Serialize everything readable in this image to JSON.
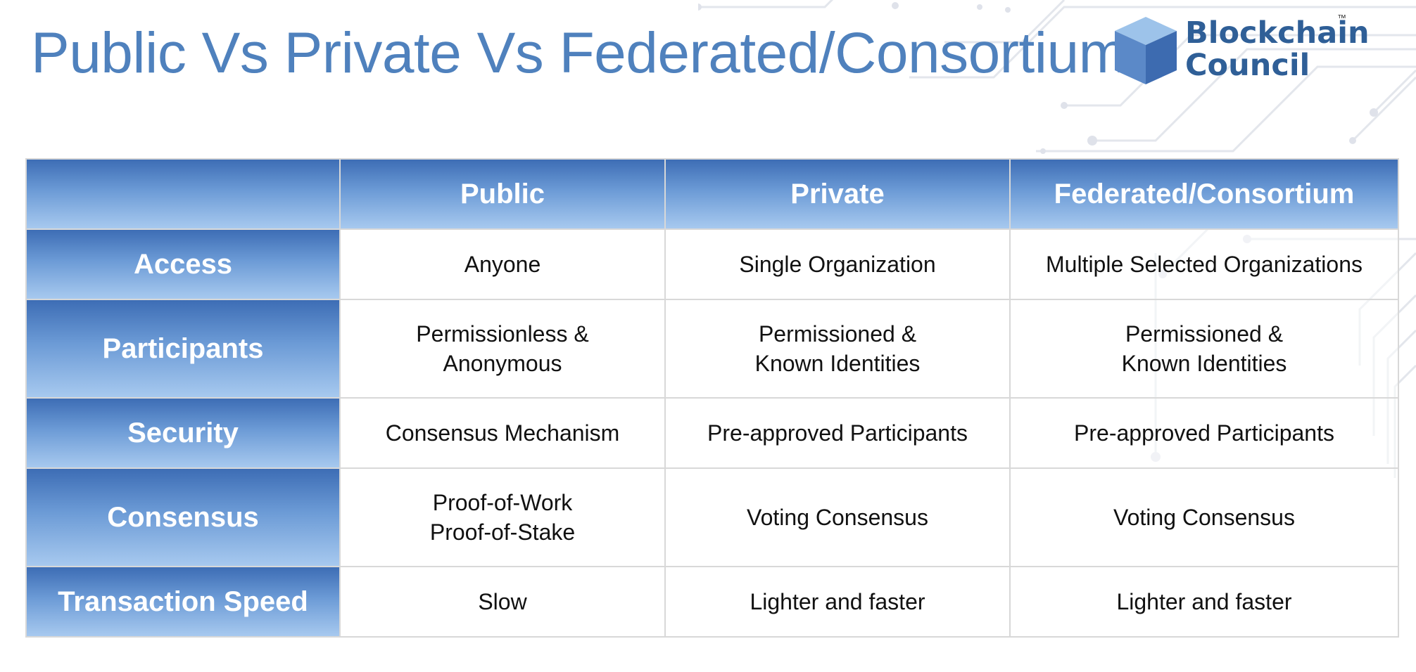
{
  "slide": {
    "title": "Public Vs Private Vs Federated/Consortium"
  },
  "logo": {
    "line1": "Blockchain",
    "line2": "Council",
    "trademark": "™",
    "colors": {
      "text": "#2f5f97",
      "cube_top": "#9dc3ea",
      "cube_left": "#5b89c8",
      "cube_right": "#3d6bb0"
    }
  },
  "table": {
    "columns": [
      "",
      "Public",
      "Private",
      "Federated/Consortium"
    ],
    "rows": [
      {
        "label": "Access",
        "cells": [
          [
            "Anyone"
          ],
          [
            "Single Organization"
          ],
          [
            "Multiple Selected Organizations"
          ]
        ]
      },
      {
        "label": "Participants",
        "cells": [
          [
            "Permissionless &",
            "Anonymous"
          ],
          [
            "Permissioned &",
            "Known Identities"
          ],
          [
            "Permissioned &",
            "Known Identities"
          ]
        ]
      },
      {
        "label": "Security",
        "cells": [
          [
            "Consensus Mechanism"
          ],
          [
            "Pre-approved Participants"
          ],
          [
            "Pre-approved Participants"
          ]
        ]
      },
      {
        "label": "Consensus",
        "cells": [
          [
            "Proof-of-Work",
            "Proof-of-Stake"
          ],
          [
            "Voting Consensus"
          ],
          [
            "Voting Consensus"
          ]
        ]
      },
      {
        "label": "Transaction Speed",
        "cells": [
          [
            "Slow"
          ],
          [
            "Lighter and faster"
          ],
          [
            "Lighter and faster"
          ]
        ]
      }
    ]
  },
  "colors": {
    "title": "#4f81bd",
    "header_gradient_top": "#3d6db5",
    "header_gradient_bottom": "#a7c9ef",
    "grid": "#d8d8d8"
  },
  "decor": {
    "background_icon": "circuit-board-pattern"
  }
}
